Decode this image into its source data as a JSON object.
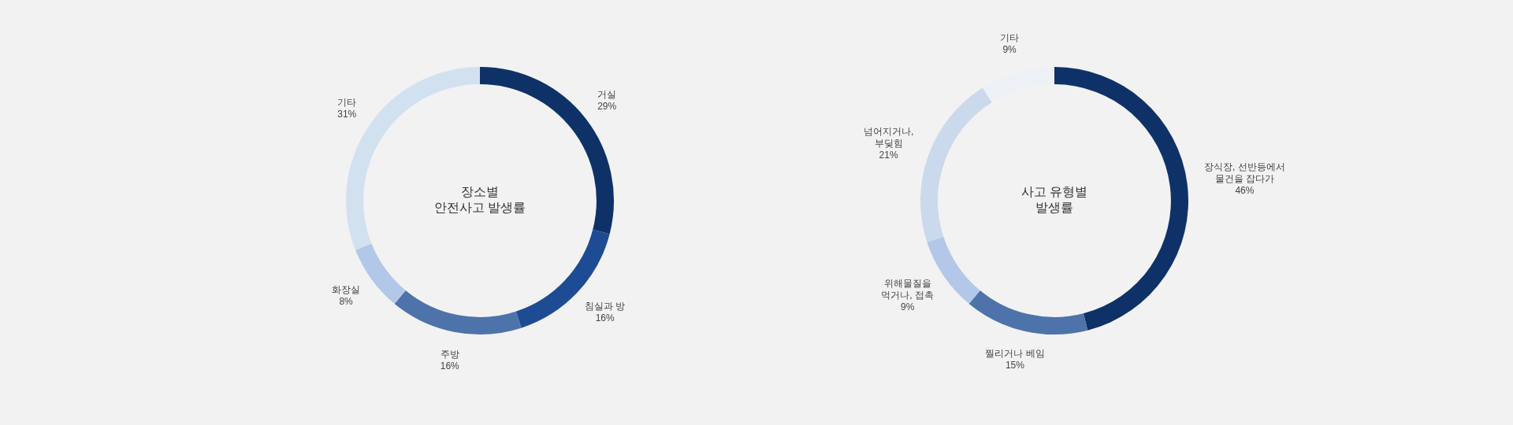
{
  "chart_data": [
    {
      "type": "donut",
      "title": "장소별\n안전사고 발생률",
      "categories": [
        "거실",
        "침실과 방",
        "주방",
        "화장실",
        "기타"
      ],
      "values": [
        29,
        16,
        16,
        8,
        31
      ],
      "value_labels": [
        "29%",
        "16%",
        "16%",
        "8%",
        "31%"
      ],
      "colors": [
        "#0e3268",
        "#1d4c94",
        "#4d73aa",
        "#b3c8e8",
        "#d2e1f0"
      ],
      "legend": false
    },
    {
      "type": "donut",
      "title": "사고 유형별\n발생률",
      "categories": [
        "장식장, 선반등에서\n물건을 잡다가",
        "찔리거나 베임",
        "위해물질을\n먹거나, 접촉",
        "넘어지거나,\n부딪힘",
        "기타"
      ],
      "values": [
        46,
        15,
        9,
        21,
        9
      ],
      "value_labels": [
        "46%",
        "15%",
        "9%",
        "21%",
        "9%"
      ],
      "colors": [
        "#0e3268",
        "#4d73aa",
        "#b3c8e8",
        "#cbd9ec",
        "#edf1f6"
      ],
      "legend": false
    }
  ]
}
